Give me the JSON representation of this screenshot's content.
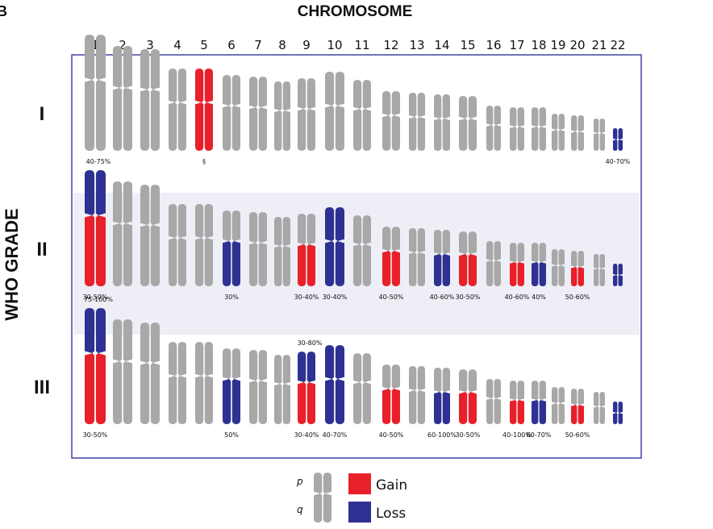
{
  "figure_label": "B",
  "top_title": "CHROMOSOME",
  "side_title": "WHO GRADE",
  "chromosome_numbers": [
    "1",
    "2",
    "3",
    "4",
    "5",
    "6",
    "7",
    "8",
    "9",
    "10",
    "11",
    "12",
    "13",
    "14",
    "15",
    "16",
    "17",
    "18",
    "19",
    "20",
    "21",
    "22"
  ],
  "colors": {
    "gray": "#a8a8a8",
    "gain": "#e8202a",
    "loss": "#2e3192",
    "border": "#4d4faa",
    "band": "#eeeef6"
  },
  "grades": [
    {
      "label": "I",
      "chromosomes": [
        {
          "n": "1",
          "p": "gray",
          "q": "gray"
        },
        {
          "n": "2",
          "p": "gray",
          "q": "gray"
        },
        {
          "n": "3",
          "p": "gray",
          "q": "gray"
        },
        {
          "n": "4",
          "p": "gray",
          "q": "gray"
        },
        {
          "n": "5",
          "p": "gain",
          "q": "gain"
        },
        {
          "n": "6",
          "p": "gray",
          "q": "gray"
        },
        {
          "n": "7",
          "p": "gray",
          "q": "gray"
        },
        {
          "n": "8",
          "p": "gray",
          "q": "gray"
        },
        {
          "n": "9",
          "p": "gray",
          "q": "gray"
        },
        {
          "n": "10",
          "p": "gray",
          "q": "gray"
        },
        {
          "n": "11",
          "p": "gray",
          "q": "gray"
        },
        {
          "n": "12",
          "p": "gray",
          "q": "gray"
        },
        {
          "n": "13",
          "p": "gray",
          "q": "gray"
        },
        {
          "n": "14",
          "p": "gray",
          "q": "gray"
        },
        {
          "n": "15",
          "p": "gray",
          "q": "gray"
        },
        {
          "n": "16",
          "p": "gray",
          "q": "gray"
        },
        {
          "n": "17",
          "p": "gray",
          "q": "gray"
        },
        {
          "n": "18",
          "p": "gray",
          "q": "gray"
        },
        {
          "n": "19",
          "p": "gray",
          "q": "gray"
        },
        {
          "n": "20",
          "p": "gray",
          "q": "gray"
        },
        {
          "n": "21",
          "p": "gray",
          "q": "gray"
        },
        {
          "n": "22",
          "p": "loss",
          "q": "loss"
        }
      ],
      "labels_above": [],
      "labels_below": [
        {
          "chr": "5",
          "text": "§"
        },
        {
          "chr": "22",
          "text": "40-70%"
        }
      ]
    },
    {
      "label": "II",
      "chromosomes": [
        {
          "n": "1",
          "p": "loss",
          "q": "gain"
        },
        {
          "n": "2",
          "p": "gray",
          "q": "gray"
        },
        {
          "n": "3",
          "p": "gray",
          "q": "gray"
        },
        {
          "n": "4",
          "p": "gray",
          "q": "gray"
        },
        {
          "n": "5",
          "p": "gray",
          "q": "gray"
        },
        {
          "n": "6",
          "p": "gray",
          "q": "loss"
        },
        {
          "n": "7",
          "p": "gray",
          "q": "gray"
        },
        {
          "n": "8",
          "p": "gray",
          "q": "gray"
        },
        {
          "n": "9",
          "p": "gray",
          "q": "gain"
        },
        {
          "n": "10",
          "p": "loss",
          "q": "loss"
        },
        {
          "n": "11",
          "p": "gray",
          "q": "gray"
        },
        {
          "n": "12",
          "p": "gray",
          "q": "gain"
        },
        {
          "n": "13",
          "p": "gray",
          "q": "gray"
        },
        {
          "n": "14",
          "p": "gray",
          "q": "loss"
        },
        {
          "n": "15",
          "p": "gray",
          "q": "gain"
        },
        {
          "n": "16",
          "p": "gray",
          "q": "gray"
        },
        {
          "n": "17",
          "p": "gray",
          "q": "gain"
        },
        {
          "n": "18",
          "p": "gray",
          "q": "loss"
        },
        {
          "n": "19",
          "p": "gray",
          "q": "gray"
        },
        {
          "n": "20",
          "p": "gray",
          "q": "gain"
        },
        {
          "n": "21",
          "p": "gray",
          "q": "gray"
        },
        {
          "n": "22",
          "p": "loss",
          "q": "loss"
        }
      ],
      "labels_above": [
        {
          "chr": "1",
          "text": "40-75%"
        }
      ],
      "labels_below": [
        {
          "chr": "1",
          "text": "30-50%"
        },
        {
          "chr": "6",
          "text": "30%"
        },
        {
          "chr": "9",
          "text": "30-40%"
        },
        {
          "chr": "10",
          "text": "30-40%"
        },
        {
          "chr": "12",
          "text": "40-50%"
        },
        {
          "chr": "14",
          "text": "40-60%"
        },
        {
          "chr": "15",
          "text": "30-50%"
        },
        {
          "chr": "17",
          "text": "40-60%"
        },
        {
          "chr": "18",
          "text": "40%"
        },
        {
          "chr": "20",
          "text": "50-60%"
        }
      ]
    },
    {
      "label": "III",
      "chromosomes": [
        {
          "n": "1",
          "p": "loss",
          "q": "gain"
        },
        {
          "n": "2",
          "p": "gray",
          "q": "gray"
        },
        {
          "n": "3",
          "p": "gray",
          "q": "gray"
        },
        {
          "n": "4",
          "p": "gray",
          "q": "gray"
        },
        {
          "n": "5",
          "p": "gray",
          "q": "gray"
        },
        {
          "n": "6",
          "p": "gray",
          "q": "loss"
        },
        {
          "n": "7",
          "p": "gray",
          "q": "gray"
        },
        {
          "n": "8",
          "p": "gray",
          "q": "gray"
        },
        {
          "n": "9",
          "p": "loss",
          "q": "gain"
        },
        {
          "n": "10",
          "p": "loss",
          "q": "loss"
        },
        {
          "n": "11",
          "p": "gray",
          "q": "gray"
        },
        {
          "n": "12",
          "p": "gray",
          "q": "gain"
        },
        {
          "n": "13",
          "p": "gray",
          "q": "gray"
        },
        {
          "n": "14",
          "p": "gray",
          "q": "loss"
        },
        {
          "n": "15",
          "p": "gray",
          "q": "gain"
        },
        {
          "n": "16",
          "p": "gray",
          "q": "gray"
        },
        {
          "n": "17",
          "p": "gray",
          "q": "gain"
        },
        {
          "n": "18",
          "p": "gray",
          "q": "loss"
        },
        {
          "n": "19",
          "p": "gray",
          "q": "gray"
        },
        {
          "n": "20",
          "p": "gray",
          "q": "gain"
        },
        {
          "n": "21",
          "p": "gray",
          "q": "gray"
        },
        {
          "n": "22",
          "p": "loss",
          "q": "loss"
        }
      ],
      "labels_above": [
        {
          "chr": "1",
          "text": "75-100%"
        },
        {
          "chr": "9",
          "text": "30-80%"
        }
      ],
      "labels_below": [
        {
          "chr": "1",
          "text": "30-50%"
        },
        {
          "chr": "6",
          "text": "50%"
        },
        {
          "chr": "9",
          "text": "30-40%"
        },
        {
          "chr": "10",
          "text": "40-70%"
        },
        {
          "chr": "12",
          "text": "40-50%"
        },
        {
          "chr": "14",
          "text": "60-100%"
        },
        {
          "chr": "15",
          "text": "30-50%"
        },
        {
          "chr": "17",
          "text": "40-100%"
        },
        {
          "chr": "18",
          "text": "60-70%"
        },
        {
          "chr": "20",
          "text": "50-60%"
        }
      ]
    }
  ],
  "legend": {
    "p_label": "p",
    "q_label": "q",
    "gain_label": "Gain",
    "loss_label": "Loss"
  }
}
